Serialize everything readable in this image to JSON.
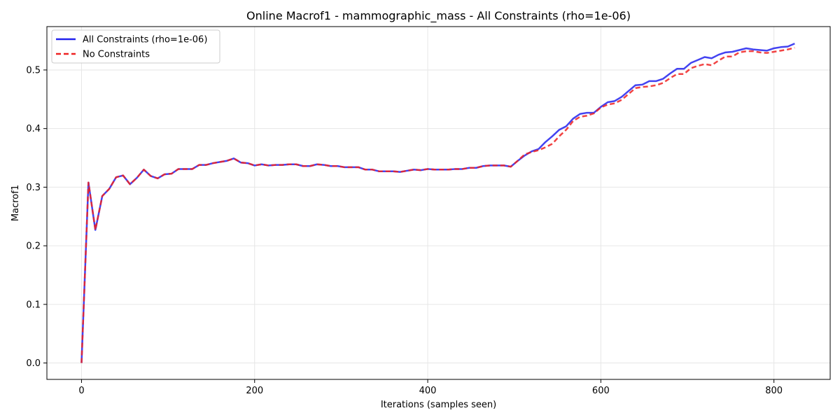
{
  "chart_data": {
    "type": "line",
    "title": "Online Macrof1 - mammographic_mass - All Constraints (rho=1e-06)",
    "xlabel": "Iterations (samples seen)",
    "ylabel": "Macrof1",
    "xlim": [
      -40,
      865
    ],
    "ylim": [
      -0.028,
      0.574
    ],
    "xticks": [
      0,
      200,
      400,
      600,
      800
    ],
    "yticks": [
      0.0,
      0.1,
      0.2,
      0.3,
      0.4,
      0.5
    ],
    "xtick_labels": [
      "0",
      "200",
      "400",
      "600",
      "800"
    ],
    "ytick_labels": [
      "0.0",
      "0.1",
      "0.2",
      "0.3",
      "0.4",
      "0.5"
    ],
    "grid": true,
    "legend_position": "top-left",
    "series": [
      {
        "name": "All Constraints (rho=1e-06)",
        "color": "#2222ee",
        "style": "solid",
        "x": [
          0,
          8,
          16,
          24,
          32,
          40,
          48,
          56,
          64,
          72,
          80,
          88,
          96,
          104,
          112,
          120,
          128,
          136,
          144,
          152,
          160,
          168,
          176,
          184,
          192,
          200,
          208,
          216,
          224,
          232,
          240,
          248,
          256,
          264,
          272,
          280,
          288,
          296,
          304,
          312,
          320,
          328,
          336,
          344,
          352,
          360,
          368,
          376,
          384,
          392,
          400,
          408,
          416,
          424,
          432,
          440,
          448,
          456,
          464,
          472,
          480,
          488,
          496,
          504,
          512,
          520,
          528,
          536,
          544,
          552,
          560,
          568,
          576,
          584,
          592,
          600,
          608,
          616,
          624,
          632,
          640,
          648,
          656,
          664,
          672,
          680,
          688,
          696,
          704,
          712,
          720,
          728,
          736,
          744,
          752,
          760,
          768,
          776,
          784,
          792,
          800,
          808,
          816,
          824
        ],
        "values": [
          0.0,
          0.308,
          0.227,
          0.285,
          0.297,
          0.317,
          0.32,
          0.305,
          0.316,
          0.33,
          0.319,
          0.315,
          0.322,
          0.323,
          0.331,
          0.331,
          0.331,
          0.338,
          0.338,
          0.341,
          0.343,
          0.345,
          0.349,
          0.342,
          0.341,
          0.337,
          0.339,
          0.337,
          0.338,
          0.338,
          0.339,
          0.339,
          0.336,
          0.336,
          0.339,
          0.338,
          0.336,
          0.336,
          0.334,
          0.334,
          0.334,
          0.33,
          0.33,
          0.327,
          0.327,
          0.327,
          0.326,
          0.328,
          0.33,
          0.329,
          0.331,
          0.33,
          0.33,
          0.33,
          0.331,
          0.331,
          0.333,
          0.333,
          0.336,
          0.337,
          0.337,
          0.337,
          0.335,
          0.345,
          0.354,
          0.361,
          0.365,
          0.377,
          0.387,
          0.398,
          0.404,
          0.417,
          0.425,
          0.427,
          0.427,
          0.437,
          0.445,
          0.447,
          0.454,
          0.464,
          0.474,
          0.475,
          0.481,
          0.481,
          0.485,
          0.494,
          0.502,
          0.502,
          0.512,
          0.517,
          0.522,
          0.52,
          0.526,
          0.53,
          0.531,
          0.534,
          0.537,
          0.535,
          0.534,
          0.533,
          0.537,
          0.539,
          0.54,
          0.545
        ]
      },
      {
        "name": "No Constraints",
        "color": "#ee2222",
        "style": "dashed",
        "x": [
          0,
          8,
          16,
          24,
          32,
          40,
          48,
          56,
          64,
          72,
          80,
          88,
          96,
          104,
          112,
          120,
          128,
          136,
          144,
          152,
          160,
          168,
          176,
          184,
          192,
          200,
          208,
          216,
          224,
          232,
          240,
          248,
          256,
          264,
          272,
          280,
          288,
          296,
          304,
          312,
          320,
          328,
          336,
          344,
          352,
          360,
          368,
          376,
          384,
          392,
          400,
          408,
          416,
          424,
          432,
          440,
          448,
          456,
          464,
          472,
          480,
          488,
          496,
          504,
          512,
          520,
          528,
          536,
          544,
          552,
          560,
          568,
          576,
          584,
          592,
          600,
          608,
          616,
          624,
          632,
          640,
          648,
          656,
          664,
          672,
          680,
          688,
          696,
          704,
          712,
          720,
          728,
          736,
          744,
          752,
          760,
          768,
          776,
          784,
          792,
          800,
          808,
          816,
          824
        ],
        "values": [
          0.0,
          0.308,
          0.227,
          0.285,
          0.297,
          0.317,
          0.32,
          0.305,
          0.316,
          0.33,
          0.319,
          0.315,
          0.322,
          0.323,
          0.331,
          0.331,
          0.331,
          0.338,
          0.338,
          0.341,
          0.343,
          0.345,
          0.349,
          0.342,
          0.341,
          0.337,
          0.339,
          0.337,
          0.338,
          0.338,
          0.339,
          0.339,
          0.336,
          0.336,
          0.339,
          0.338,
          0.336,
          0.336,
          0.334,
          0.334,
          0.334,
          0.33,
          0.33,
          0.327,
          0.327,
          0.327,
          0.326,
          0.328,
          0.33,
          0.329,
          0.331,
          0.33,
          0.33,
          0.33,
          0.331,
          0.331,
          0.333,
          0.333,
          0.336,
          0.337,
          0.337,
          0.337,
          0.335,
          0.345,
          0.356,
          0.36,
          0.363,
          0.368,
          0.374,
          0.387,
          0.398,
          0.413,
          0.42,
          0.422,
          0.426,
          0.436,
          0.441,
          0.443,
          0.449,
          0.459,
          0.469,
          0.471,
          0.472,
          0.474,
          0.478,
          0.486,
          0.493,
          0.493,
          0.503,
          0.507,
          0.51,
          0.508,
          0.516,
          0.523,
          0.523,
          0.53,
          0.532,
          0.532,
          0.53,
          0.529,
          0.531,
          0.533,
          0.535,
          0.538
        ]
      }
    ]
  }
}
